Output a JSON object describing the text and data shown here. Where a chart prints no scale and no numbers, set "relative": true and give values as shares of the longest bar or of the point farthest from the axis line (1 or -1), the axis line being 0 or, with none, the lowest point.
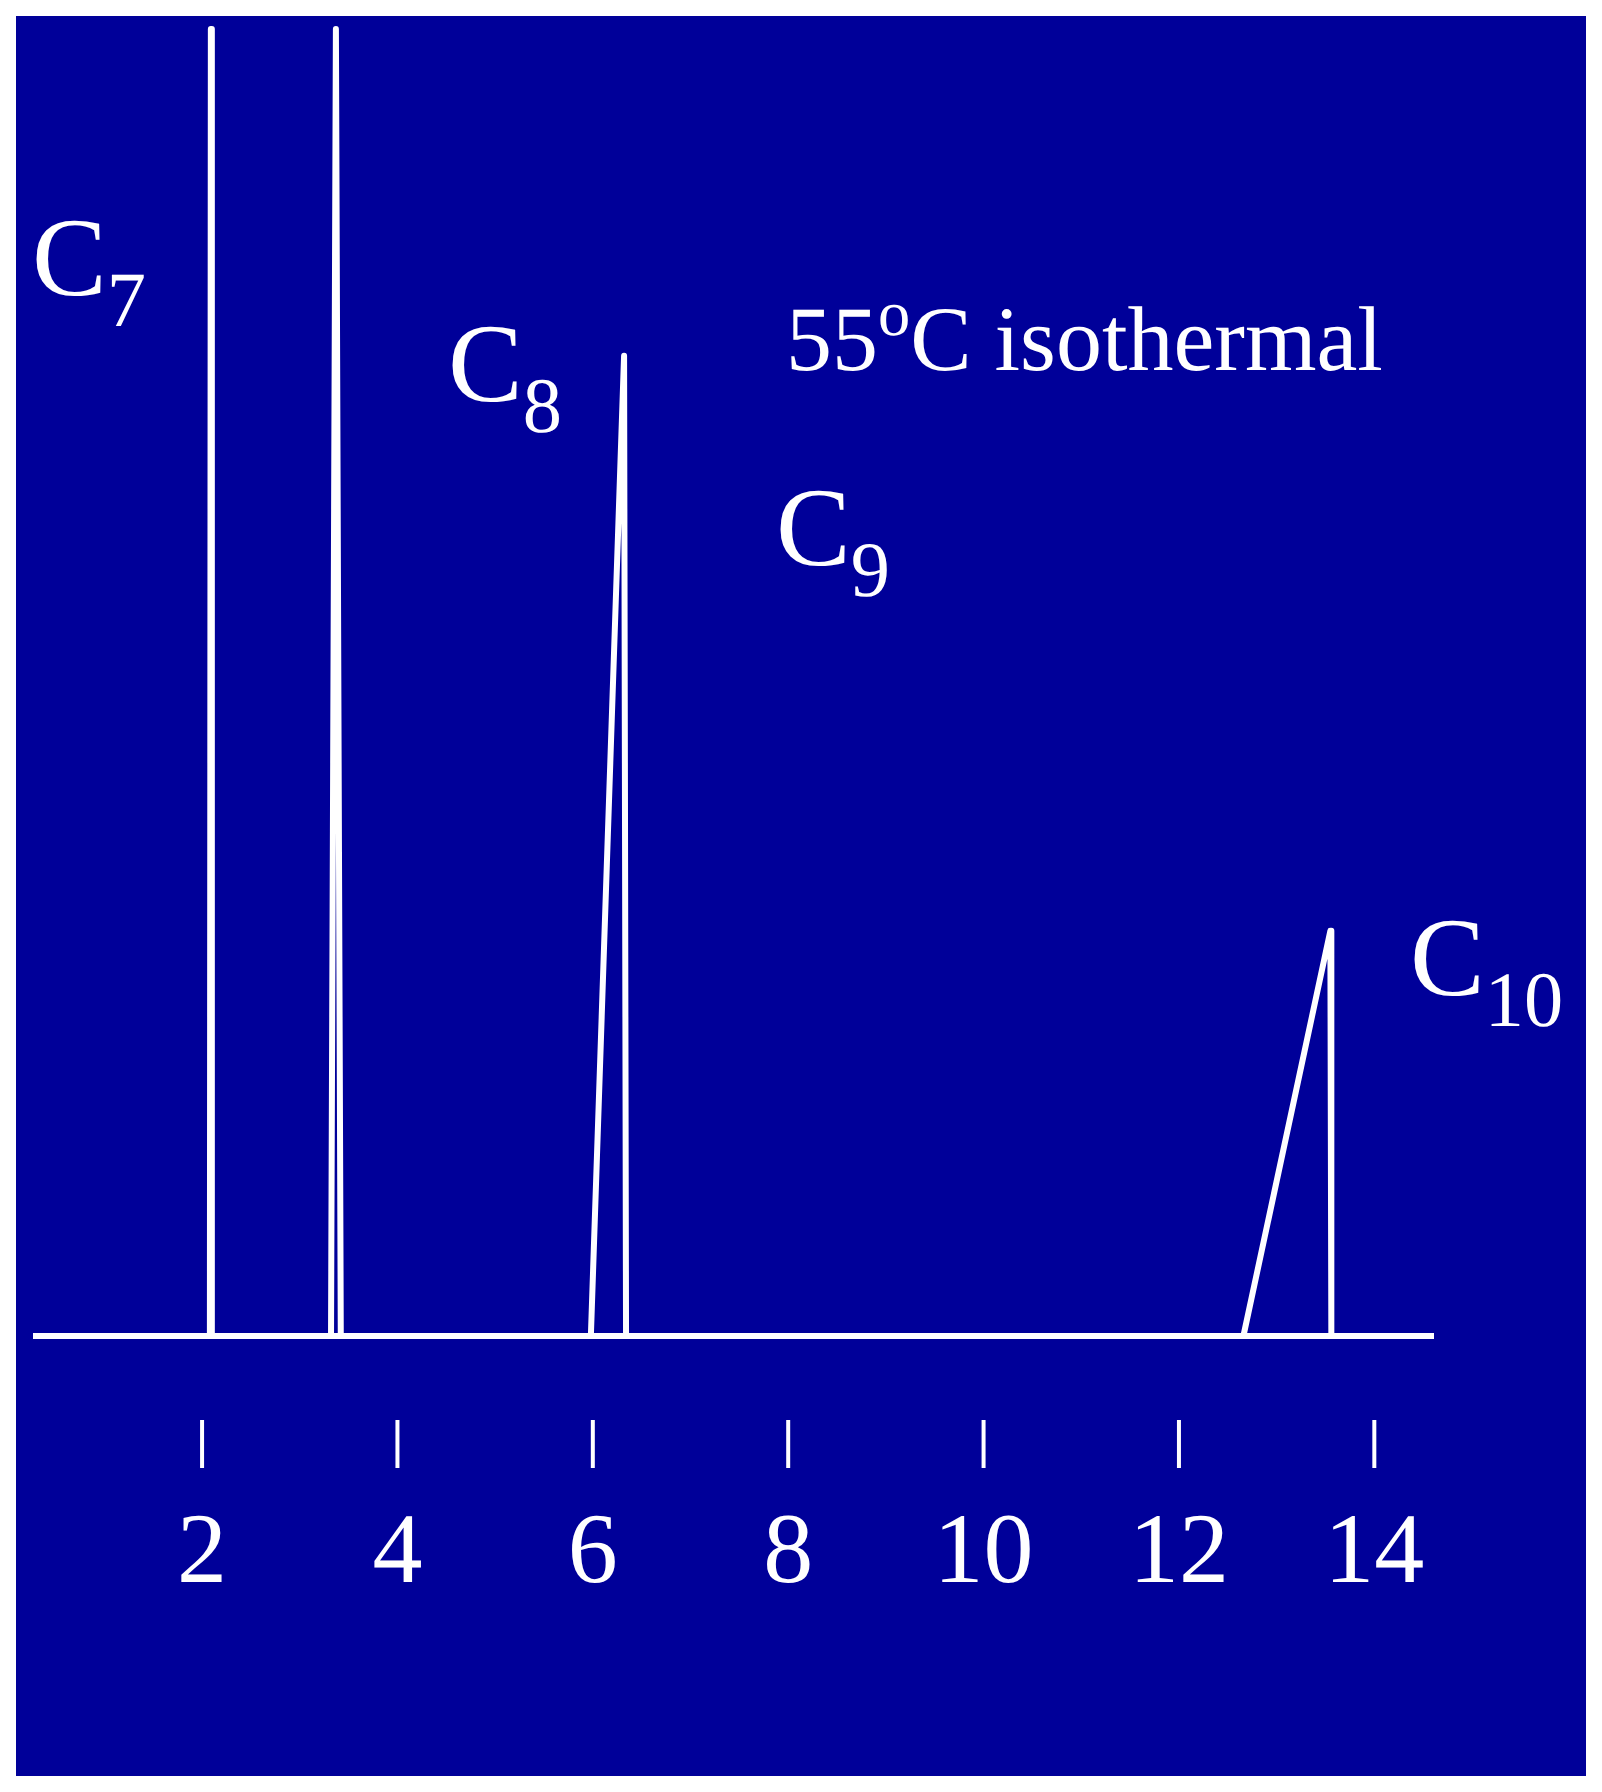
{
  "chart_data": {
    "type": "line",
    "relative": true,
    "x": [
      0.3,
      2.08,
      2.09,
      2.1,
      3.32,
      3.37,
      3.42,
      5.98,
      6.32,
      6.34,
      12.66,
      13.55,
      13.56,
      14.6
    ],
    "series": [
      {
        "color": "#ffffff",
        "values": [
          0,
          0,
          1,
          0,
          0,
          1,
          0,
          0,
          0.75,
          0,
          0,
          0.31,
          0,
          0
        ]
      }
    ],
    "xlim": [
      0.3,
      14.6
    ],
    "xticks": [
      2,
      4,
      6,
      8,
      10,
      12,
      14
    ],
    "annotations": [
      "55$^{o}$C isothermal",
      "C$_{7}$",
      "C$_{8}$",
      "C$_{9}$",
      "C$_{10}$"
    ],
    "grid": false,
    "legend": false,
    "marker": "none",
    "line_style": "solid"
  }
}
